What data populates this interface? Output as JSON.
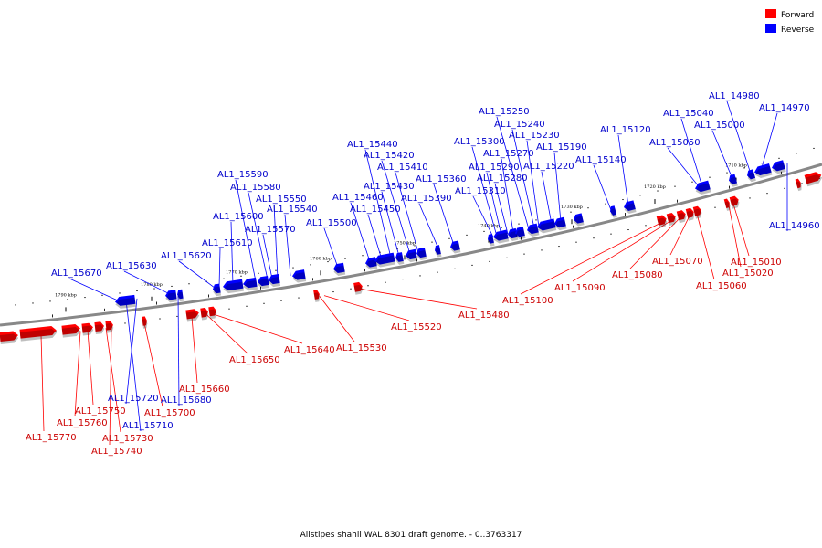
{
  "caption": "Alistipes shahii WAL 8301 draft genome. - 0..3763317",
  "legend": [
    {
      "label": "Forward",
      "color": "#ff0000"
    },
    {
      "label": "Reverse",
      "color": "#0000ff"
    }
  ],
  "colors": {
    "forward": "#ff0000",
    "forward_label": "#cc0000",
    "forward_line": "#ff0000",
    "reverse": "#0000ff",
    "reverse_label": "#0000cc",
    "reverse_line": "#0000ff",
    "backbone": "#888888"
  },
  "ticks": [
    "1790 kbp",
    "1780 kbp",
    "1770 kbp",
    "1760 kbp",
    "1750 kbp",
    "1740 kbp",
    "1730 kbp",
    "1720 kbp",
    "1710 kbp"
  ],
  "genes_forward": [
    "AL1_15770",
    "AL1_15760",
    "AL1_15750",
    "AL1_15740",
    "AL1_15730",
    "AL1_15700",
    "AL1_15660",
    "AL1_15650",
    "AL1_15640",
    "AL1_15530",
    "AL1_15520",
    "AL1_15480",
    "AL1_15100",
    "AL1_15090",
    "AL1_15080",
    "AL1_15070",
    "AL1_15060",
    "AL1_15020",
    "AL1_15010"
  ],
  "genes_reverse": [
    "AL1_15720",
    "AL1_15710",
    "AL1_15680",
    "AL1_15670",
    "AL1_15630",
    "AL1_15620",
    "AL1_15610",
    "AL1_15600",
    "AL1_15590",
    "AL1_15580",
    "AL1_15570",
    "AL1_15550",
    "AL1_15540",
    "AL1_15500",
    "AL1_15460",
    "AL1_15450",
    "AL1_15440",
    "AL1_15430",
    "AL1_15420",
    "AL1_15410",
    "AL1_15390",
    "AL1_15360",
    "AL1_15310",
    "AL1_15300",
    "AL1_15290",
    "AL1_15280",
    "AL1_15270",
    "AL1_15250",
    "AL1_15240",
    "AL1_15230",
    "AL1_15220",
    "AL1_15190",
    "AL1_15140",
    "AL1_15120",
    "AL1_15050",
    "AL1_15040",
    "AL1_15000",
    "AL1_14980",
    "AL1_14970",
    "AL1_14960"
  ]
}
